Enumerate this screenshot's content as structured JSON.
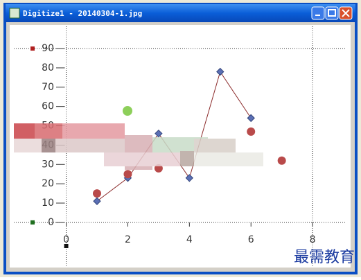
{
  "window": {
    "title": "Digitize1 - 20140304-1.jpg"
  },
  "chart_data": {
    "type": "scatter",
    "xlim": [
      -1.7,
      9.1
    ],
    "xticks": [
      0,
      2,
      4,
      6,
      8
    ],
    "ylim": [
      -23,
      101.5
    ],
    "yticks": [
      0,
      10,
      20,
      30,
      40,
      50,
      60,
      70,
      80,
      90
    ],
    "series": [
      {
        "color": "#5b6fb5",
        "marker": "diamond",
        "line": true,
        "line_color": "#8b2a2a",
        "x": [
          1,
          2,
          3,
          4,
          5,
          6
        ],
        "values": [
          11,
          23,
          46,
          23,
          78,
          54
        ]
      },
      {
        "color": "#b94a4a",
        "marker": "circle",
        "line": false,
        "x": [
          1,
          2,
          3,
          6,
          7
        ],
        "values": [
          15,
          25,
          28,
          47,
          32
        ]
      }
    ]
  },
  "watermark": "最需教育"
}
